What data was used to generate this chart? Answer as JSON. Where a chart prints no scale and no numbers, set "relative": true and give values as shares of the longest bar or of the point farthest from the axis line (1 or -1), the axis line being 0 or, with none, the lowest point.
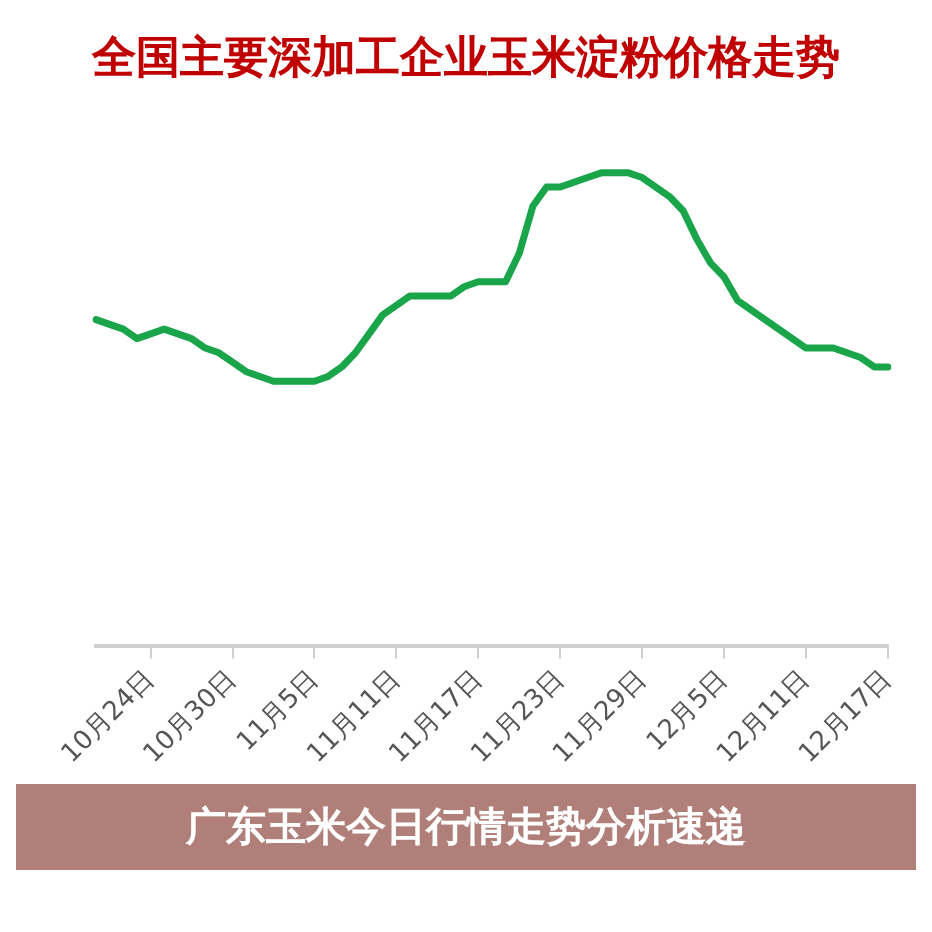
{
  "chart_data": {
    "type": "line",
    "title": "全国主要深加工企业玉米淀粉价格走势",
    "relative": true,
    "grid": false,
    "legend": false,
    "marker": "none",
    "line_style": "solid",
    "annotations": [
      "广东玉米今日行情走势分析速递"
    ],
    "categories": [
      null,
      null,
      null,
      null,
      "10月24日",
      null,
      null,
      null,
      null,
      null,
      "10月30日",
      null,
      null,
      null,
      null,
      null,
      "11月5日",
      null,
      null,
      null,
      null,
      null,
      "11月11日",
      null,
      null,
      null,
      null,
      null,
      "11月17日",
      null,
      null,
      null,
      null,
      null,
      "11月23日",
      null,
      null,
      null,
      null,
      null,
      "11月29日",
      null,
      null,
      null,
      null,
      null,
      "12月5日",
      null,
      null,
      null,
      null,
      null,
      "12月11日",
      null,
      null,
      null,
      null,
      null,
      "12月17日"
    ],
    "series": [
      {
        "color": "#1aa54a",
        "values": [
          0.69,
          0.68,
          0.67,
          0.65,
          0.66,
          0.67,
          0.66,
          0.65,
          0.63,
          0.62,
          0.6,
          0.58,
          0.57,
          0.56,
          0.56,
          0.56,
          0.56,
          0.57,
          0.59,
          0.62,
          0.66,
          0.7,
          0.72,
          0.74,
          0.74,
          0.74,
          0.74,
          0.76,
          0.77,
          0.77,
          0.77,
          0.83,
          0.93,
          0.97,
          0.97,
          0.98,
          0.99,
          1,
          1,
          1,
          0.99,
          0.97,
          0.95,
          0.92,
          0.86,
          0.81,
          0.78,
          0.73,
          0.71,
          0.69,
          0.67,
          0.65,
          0.63,
          0.63,
          0.63,
          0.62,
          0.61,
          0.59,
          0.59
        ]
      }
    ]
  }
}
